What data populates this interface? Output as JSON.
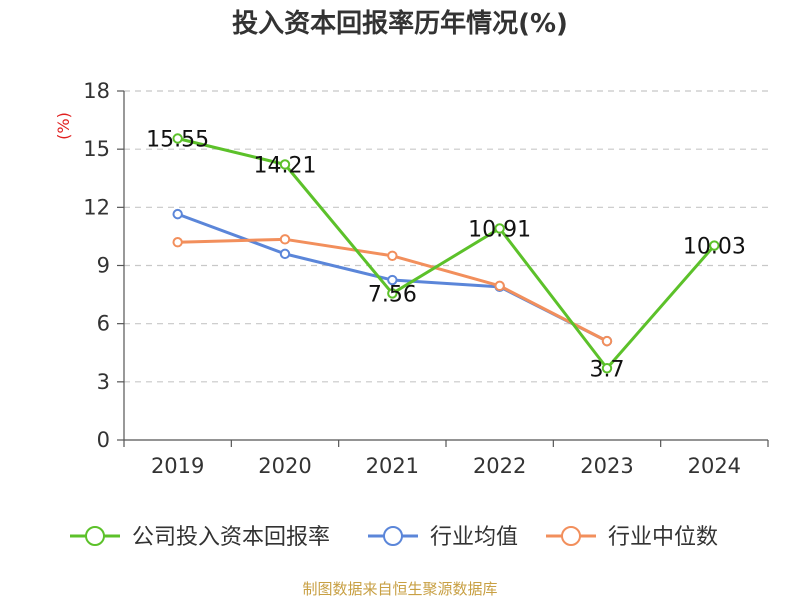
{
  "chart_data": {
    "type": "line",
    "title": "投入资本回报率历年情况(%)",
    "ylabel": "(%)",
    "xlabel": "",
    "categories": [
      "2019",
      "2020",
      "2021",
      "2022",
      "2023",
      "2024"
    ],
    "ylim": [
      0,
      18
    ],
    "yticks": [
      0,
      3,
      6,
      9,
      12,
      15,
      18
    ],
    "grid": true,
    "legend_position": "bottom",
    "series": [
      {
        "name": "公司投入资本回报率",
        "color": "#5cc12a",
        "values": [
          15.55,
          14.21,
          7.56,
          10.91,
          3.7,
          10.03
        ],
        "labels": [
          "15.55",
          "14.21",
          "7.56",
          "10.91",
          "3.7",
          "10.03"
        ]
      },
      {
        "name": "行业均值",
        "color": "#5b86d9",
        "values": [
          11.65,
          9.6,
          8.25,
          7.9,
          5.1,
          null
        ]
      },
      {
        "name": "行业中位数",
        "color": "#f28f5c",
        "values": [
          10.2,
          10.35,
          9.5,
          7.95,
          5.1,
          null
        ]
      }
    ]
  },
  "footer": {
    "source": "制图数据来自恒生聚源数据库"
  }
}
